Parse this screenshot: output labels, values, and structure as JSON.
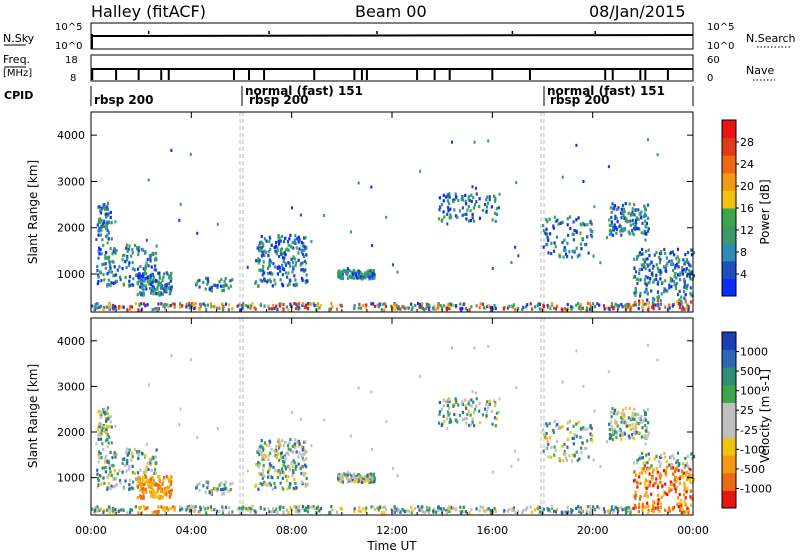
{
  "header": {
    "station": "Halley (fitACF)",
    "beam": "Beam 00",
    "date": "08/Jan/2015"
  },
  "strip_labels": {
    "nsky": "N.Sky",
    "nsky_ticks": [
      "10^5",
      "10^0"
    ],
    "nsearch": "N.Search",
    "nsearch_ticks": [
      "10^5",
      "10^0"
    ],
    "freq": "Freq.",
    "freq_unit": "[MHz]",
    "freq_ticks": [
      "18",
      "8"
    ],
    "nave": "Nave",
    "nave_ticks": [
      "60",
      "0"
    ],
    "cpid": "CPID"
  },
  "cpid_segments": [
    {
      "name": "rbsp 200",
      "start_hour": 0.0
    },
    {
      "name": "normal (fast) 151",
      "start_hour": 6.0
    },
    {
      "name": "rbsp 200",
      "start_hour": 6.0
    },
    {
      "name": "normal (fast) 151",
      "start_hour": 18.0
    },
    {
      "name": "rbsp 200",
      "start_hour": 18.0
    }
  ],
  "chart_data": [
    {
      "type": "heatmap",
      "xlabel": "",
      "ylabel": "Slant Range [km]",
      "xlim": [
        0,
        24
      ],
      "ylim": [
        180,
        4500
      ],
      "yticks": [
        "1000",
        "2000",
        "3000",
        "4000"
      ],
      "colorbar": {
        "label": "Power [dB]",
        "ticks": [
          "4",
          "8",
          "12",
          "16",
          "20",
          "24",
          "28"
        ],
        "colors": [
          "#0a2cff",
          "#1f4fbf",
          "#2e8bb5",
          "#3d9a66",
          "#3aa84a",
          "#f2c20f",
          "#f39a12",
          "#ec6a12",
          "#e33a16",
          "#e81414"
        ]
      },
      "mode_change_hours": [
        6.0,
        18.0
      ]
    },
    {
      "type": "heatmap",
      "xlabel": "Time UT",
      "ylabel": "Slant Range [km]",
      "xlim": [
        0,
        24
      ],
      "ylim": [
        180,
        4500
      ],
      "xticks": [
        "00:00",
        "04:00",
        "08:00",
        "12:00",
        "16:00",
        "20:00",
        "00:00"
      ],
      "yticks": [
        "1000",
        "2000",
        "3000",
        "4000"
      ],
      "colorbar": {
        "label": "Velocity [m s-1]",
        "ticks": [
          "1000",
          "500",
          "100",
          "25",
          "-25",
          "-100",
          "-500",
          "-1000"
        ],
        "colors": [
          "#1b3fb0",
          "#2d66b5",
          "#2e8c77",
          "#3aa84a",
          "#bfbfbf",
          "#bfbfbf",
          "#f2c20f",
          "#f39a12",
          "#ec6a12",
          "#e81414"
        ]
      },
      "mode_change_hours": [
        6.0,
        18.0
      ]
    }
  ]
}
